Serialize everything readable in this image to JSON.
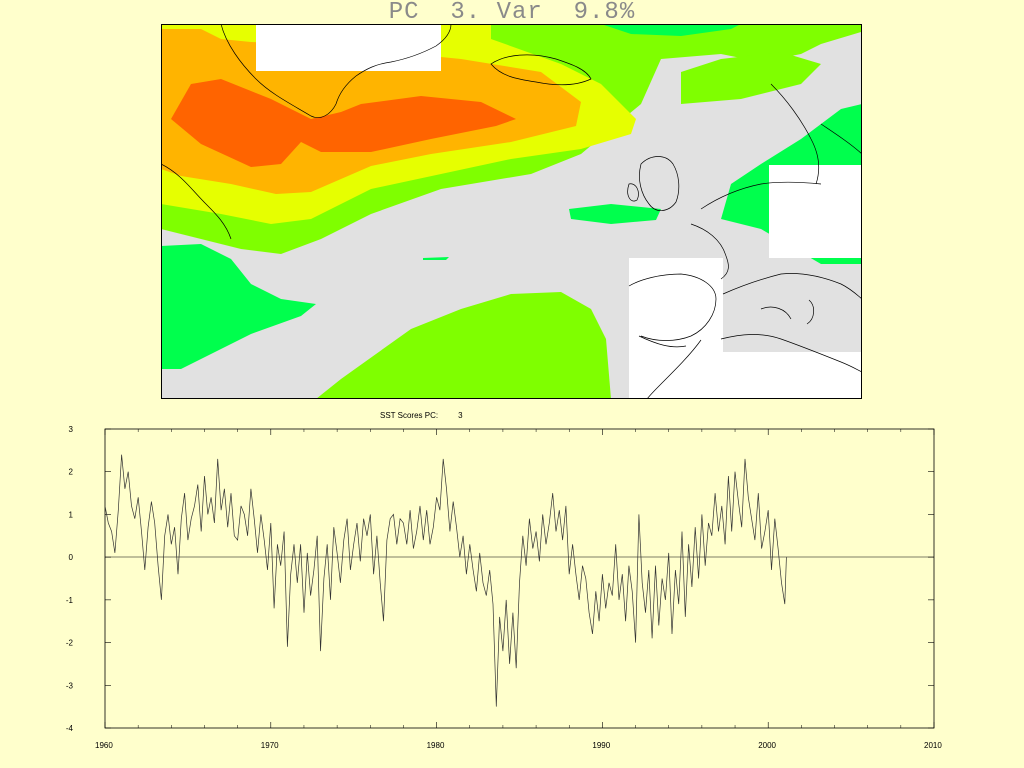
{
  "map": {
    "title": "PC  3. Var  9.8%",
    "colors": {
      "ocean": "#e1e1e1",
      "land": "#ffffff",
      "coast": "#000000",
      "bright_green": "#00ff4d",
      "green": "#7fff00",
      "yellow": "#e6ff00",
      "orange": "#ffb400",
      "red_orange": "#ff6400"
    }
  },
  "chart_data": {
    "type": "line",
    "title_label": "SST Scores PC:",
    "title_value": "3",
    "x_ticks": [
      "1960",
      "1970",
      "1980",
      "1990",
      "2000",
      "2010"
    ],
    "y_ticks": [
      "3",
      "2",
      "1",
      "0",
      "-1",
      "-2",
      "-3",
      "-4"
    ],
    "xlim": [
      1960,
      2010
    ],
    "ylim": [
      -4,
      3
    ],
    "grid": false,
    "zero_line": true,
    "series": [
      {
        "color": "#333333",
        "x": [
          1960.0,
          1960.2,
          1960.4,
          1960.6,
          1960.8,
          1961.0,
          1961.2,
          1961.4,
          1961.6,
          1961.8,
          1962.0,
          1962.2,
          1962.4,
          1962.6,
          1962.8,
          1963.0,
          1963.2,
          1963.4,
          1963.6,
          1963.8,
          1964.0,
          1964.2,
          1964.4,
          1964.6,
          1964.8,
          1965.0,
          1965.2,
          1965.4,
          1965.6,
          1965.8,
          1966.0,
          1966.2,
          1966.4,
          1966.6,
          1966.8,
          1967.0,
          1967.2,
          1967.4,
          1967.6,
          1967.8,
          1968.0,
          1968.2,
          1968.4,
          1968.6,
          1968.8,
          1969.0,
          1969.2,
          1969.4,
          1969.6,
          1969.8,
          1970.0,
          1970.2,
          1970.4,
          1970.6,
          1970.8,
          1971.0,
          1971.2,
          1971.4,
          1971.6,
          1971.8,
          1972.0,
          1972.2,
          1972.4,
          1972.6,
          1972.8,
          1973.0,
          1973.2,
          1973.4,
          1973.6,
          1973.8,
          1974.0,
          1974.2,
          1974.4,
          1974.6,
          1974.8,
          1975.0,
          1975.2,
          1975.4,
          1975.6,
          1975.8,
          1976.0,
          1976.2,
          1976.4,
          1976.6,
          1976.8,
          1977.0,
          1977.2,
          1977.4,
          1977.6,
          1977.8,
          1978.0,
          1978.2,
          1978.4,
          1978.6,
          1978.8,
          1979.0,
          1979.2,
          1979.4,
          1979.6,
          1979.8,
          1980.0,
          1980.2,
          1980.4,
          1980.6,
          1980.8,
          1981.0,
          1981.2,
          1981.4,
          1981.6,
          1981.8,
          1982.0,
          1982.2,
          1982.4,
          1982.6,
          1982.8,
          1983.0,
          1983.2,
          1983.4,
          1983.6,
          1983.8,
          1984.0,
          1984.2,
          1984.4,
          1984.6,
          1984.8,
          1985.0,
          1985.2,
          1985.4,
          1985.6,
          1985.8,
          1986.0,
          1986.2,
          1986.4,
          1986.6,
          1986.8,
          1987.0,
          1987.2,
          1987.4,
          1987.6,
          1987.8,
          1988.0,
          1988.2,
          1988.4,
          1988.6,
          1988.8,
          1989.0,
          1989.2,
          1989.4,
          1989.6,
          1989.8,
          1990.0,
          1990.2,
          1990.4,
          1990.6,
          1990.8,
          1991.0,
          1991.2,
          1991.4,
          1991.6,
          1991.8,
          1992.0,
          1992.2,
          1992.4,
          1992.6,
          1992.8,
          1993.0,
          1993.2,
          1993.4,
          1993.6,
          1993.8,
          1994.0,
          1994.2,
          1994.4,
          1994.6,
          1994.8,
          1995.0,
          1995.2,
          1995.4,
          1995.6,
          1995.8,
          1996.0,
          1996.2,
          1996.4,
          1996.6,
          1996.8,
          1997.0,
          1997.2,
          1997.4,
          1997.6,
          1997.8,
          1998.0,
          1998.2,
          1998.4,
          1998.6,
          1998.8,
          1999.0,
          1999.2,
          1999.4,
          1999.6,
          1999.8,
          2000.0,
          2000.2,
          2000.4,
          2000.6,
          2000.8,
          2001.0,
          2001.1
        ],
        "y": [
          1.2,
          0.8,
          0.6,
          0.1,
          1.1,
          2.4,
          1.6,
          2.0,
          1.2,
          0.9,
          1.4,
          0.6,
          -0.3,
          0.7,
          1.3,
          0.8,
          -0.2,
          -1.0,
          0.5,
          1.0,
          0.3,
          0.7,
          -0.4,
          0.9,
          1.5,
          0.4,
          0.9,
          1.2,
          1.7,
          0.6,
          1.9,
          1.0,
          1.4,
          0.8,
          2.3,
          1.1,
          1.6,
          0.7,
          1.5,
          0.5,
          0.4,
          1.2,
          1.0,
          0.5,
          1.6,
          0.9,
          0.1,
          1.0,
          0.4,
          -0.3,
          0.8,
          -1.2,
          0.3,
          -0.2,
          0.6,
          -2.1,
          -0.4,
          0.3,
          -0.6,
          0.3,
          -1.3,
          0.1,
          -0.9,
          -0.3,
          0.5,
          -2.2,
          -0.5,
          0.3,
          -1.0,
          0.7,
          0.1,
          -0.6,
          0.4,
          0.9,
          -0.3,
          0.3,
          0.8,
          -0.1,
          0.9,
          0.5,
          1.0,
          -0.4,
          0.5,
          -0.6,
          -1.5,
          0.4,
          0.9,
          1.0,
          0.3,
          0.9,
          0.8,
          0.3,
          1.1,
          0.2,
          0.6,
          1.2,
          0.4,
          1.1,
          0.3,
          0.7,
          1.4,
          1.1,
          2.3,
          1.6,
          0.6,
          1.3,
          0.7,
          0.0,
          0.5,
          -0.4,
          0.3,
          -0.3,
          -0.8,
          0.1,
          -0.6,
          -0.9,
          -0.3,
          -1.1,
          -3.5,
          -1.4,
          -2.2,
          -1.0,
          -2.5,
          -1.3,
          -2.6,
          -0.6,
          0.5,
          -0.2,
          0.9,
          0.2,
          0.6,
          -0.1,
          1.0,
          0.3,
          0.8,
          1.5,
          0.6,
          1.1,
          0.4,
          1.2,
          -0.4,
          0.3,
          -0.4,
          -1.0,
          -0.2,
          -0.5,
          -1.3,
          -1.8,
          -0.8,
          -1.5,
          -0.4,
          -1.2,
          -0.6,
          -0.9,
          0.3,
          -1.0,
          -0.4,
          -1.5,
          -0.2,
          -0.8,
          -2.0,
          1.0,
          -0.6,
          -1.3,
          -0.3,
          -1.9,
          -0.2,
          -1.6,
          -0.5,
          -1.0,
          0.1,
          -1.8,
          -0.3,
          -1.1,
          0.6,
          -1.4,
          0.3,
          -0.7,
          0.7,
          -0.5,
          1.0,
          -0.2,
          0.8,
          0.5,
          1.5,
          0.6,
          1.2,
          0.3,
          1.9,
          0.6,
          2.0,
          1.3,
          0.7,
          2.3,
          1.4,
          0.9,
          0.4,
          1.5,
          0.2,
          0.6,
          1.1,
          -0.3,
          0.9,
          0.2,
          -0.6,
          -1.1,
          0.0
        ]
      }
    ]
  }
}
